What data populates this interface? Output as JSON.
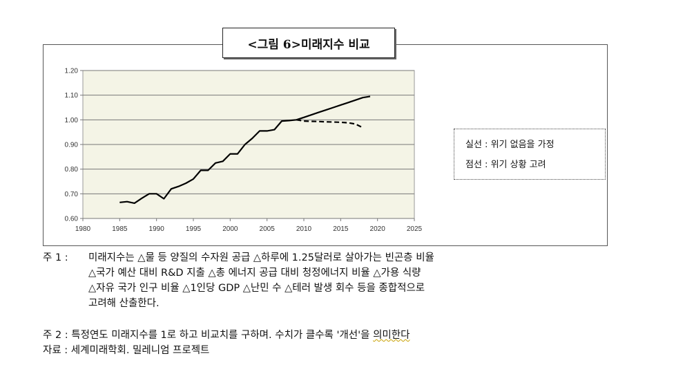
{
  "figure": {
    "title": "<그림 6>미래지수 비교"
  },
  "legend": {
    "solid": "실선 : 위기 없음을 가정",
    "dashed": "점선 : 위기 상황 고려"
  },
  "notes": {
    "note1_label": "주 1 :",
    "note1_lines": [
      "미래지수는 △물 등 양질의 수자원 공급 △하루에 1.25달러로 살아가는 빈곤층 비율",
      "△국가 예산 대비 R&D 지출 △총 에너지 공급 대비 청정에너지 비율 △가용 식량",
      "△자유 국가 인구 비율 △1인당 GDP △난민 수 △테러 발생 회수 등을 종합적으로",
      "고려해 산출한다."
    ],
    "note2_label": "주 2 :",
    "note2_text": "특정연도 미래지수를 1로 하고 비교치를 구하며. 수치가 클수록 '개선'을 ",
    "note2_tail": "의미한다",
    "source_label": "자료 :",
    "source_text": "세계미래학회. 밀레니엄 프로젝트"
  },
  "chart_data": {
    "type": "line",
    "title": "<그림 6>미래지수 비교",
    "xlabel": "",
    "ylabel": "",
    "xlim": [
      1980,
      2025
    ],
    "ylim": [
      0.6,
      1.2
    ],
    "x_ticks": [
      1980,
      1985,
      1990,
      1995,
      2000,
      2005,
      2010,
      2015,
      2020,
      2025
    ],
    "y_ticks": [
      "0.60",
      "0.70",
      "0.80",
      "0.90",
      "1.00",
      "1.10",
      "1.20"
    ],
    "grid": true,
    "series": [
      {
        "name": "실선",
        "style": "solid",
        "color": "#000000",
        "x": [
          1985,
          1986,
          1987,
          1988,
          1989,
          1990,
          1991,
          1992,
          1993,
          1994,
          1995,
          1996,
          1997,
          1998,
          1999,
          2000,
          2001,
          2002,
          2003,
          2004,
          2005,
          2006,
          2007,
          2008,
          2009,
          2010,
          2011,
          2012,
          2013,
          2014,
          2015,
          2016,
          2017,
          2018,
          2019
        ],
        "y": [
          0.665,
          0.668,
          0.662,
          0.682,
          0.7,
          0.7,
          0.68,
          0.72,
          0.73,
          0.743,
          0.76,
          0.795,
          0.795,
          0.825,
          0.832,
          0.862,
          0.862,
          0.9,
          0.925,
          0.955,
          0.955,
          0.96,
          0.995,
          0.997,
          1.0,
          1.01,
          1.02,
          1.03,
          1.04,
          1.05,
          1.06,
          1.07,
          1.08,
          1.09,
          1.095
        ]
      },
      {
        "name": "점선",
        "style": "dashed",
        "color": "#000000",
        "x": [
          2009,
          2010,
          2011,
          2012,
          2013,
          2014,
          2015,
          2016,
          2017,
          2018
        ],
        "y": [
          1.0,
          0.995,
          0.994,
          0.993,
          0.992,
          0.991,
          0.99,
          0.988,
          0.983,
          0.968
        ]
      }
    ]
  }
}
